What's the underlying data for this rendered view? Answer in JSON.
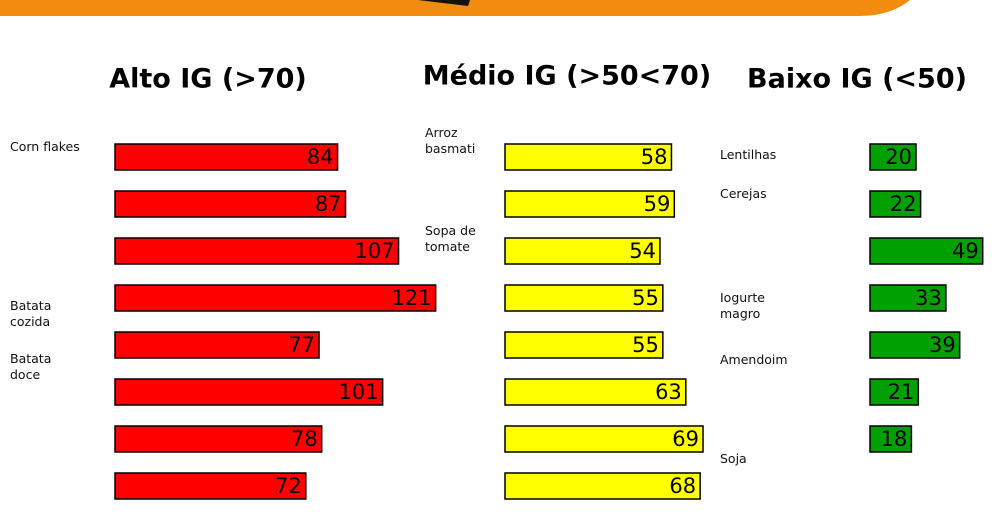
{
  "chart_data": [
    {
      "type": "bar",
      "title": "Alto IG (>70)",
      "color": "#ff0000",
      "categories": [
        "Corn flakes",
        null,
        null,
        "Batata cozida",
        "Batata doce",
        null,
        null,
        null
      ],
      "values": [
        84,
        87,
        107,
        121,
        77,
        101,
        78,
        72
      ]
    },
    {
      "type": "bar",
      "title": "Médio IG (>50<70)",
      "color": "#ffff00",
      "categories": [
        "Arroz basmati",
        null,
        "Sopa de tomate",
        null,
        null,
        null,
        null,
        null
      ],
      "values": [
        58,
        59,
        54,
        55,
        55,
        63,
        69,
        68
      ]
    },
    {
      "type": "bar",
      "title": "Baixo IG (<50)",
      "color": "#00a000",
      "categories": [
        "Lentilhas",
        "Cerejas",
        null,
        "Iogurte magro",
        null,
        "Amendoim",
        "Soja"
      ],
      "values": [
        20,
        22,
        49,
        33,
        39,
        21,
        18
      ]
    }
  ]
}
